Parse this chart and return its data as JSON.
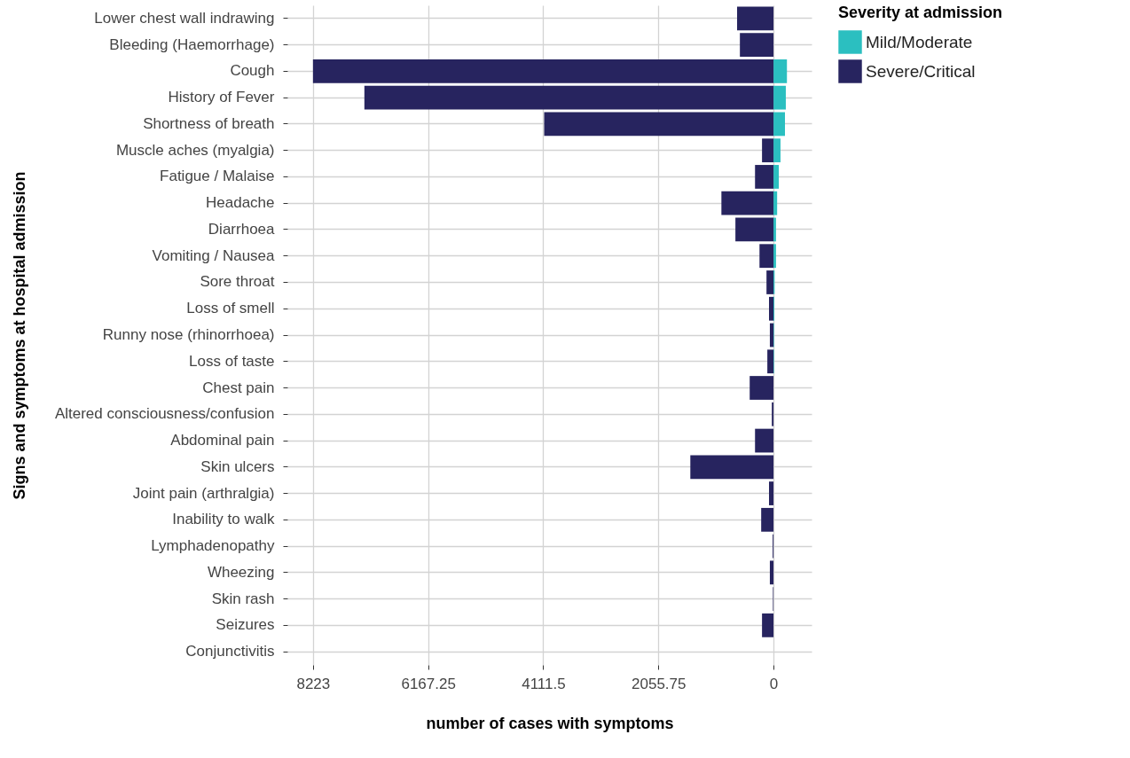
{
  "chart_data": {
    "type": "bar",
    "orientation": "horizontal",
    "xlabel": "number of cases with symptoms",
    "ylabel": "Signs and symptoms at hospital admission",
    "legend_title": "Severity at admission",
    "legend": "right",
    "grid": true,
    "categories": [
      "Lower chest wall indrawing",
      "Bleeding (Haemorrhage)",
      "Cough",
      "History of Fever",
      "Shortness of breath",
      "Muscle aches (myalgia)",
      "Fatigue / Malaise",
      "Headache",
      "Diarrhoea",
      "Vomiting / Nausea",
      "Sore throat",
      "Loss of smell",
      "Runny nose (rhinorrhoea)",
      "Loss of taste",
      "Chest pain",
      "Altered consciousness/confusion",
      "Abdominal pain",
      "Skin ulcers",
      "Joint pain (arthralgia)",
      "Inability to walk",
      "Lymphadenopathy",
      "Wheezing",
      "Skin rash",
      "Seizures",
      "Conjunctivitis"
    ],
    "xlim": [
      8680,
      -680
    ],
    "xticks": [
      8223,
      6167.25,
      4111.5,
      2055.75,
      0
    ],
    "series": [
      {
        "name": "Mild/Moderate",
        "color": "#2bbfc0",
        "values": [
          0,
          0,
          -240,
          -220,
          -205,
          -125,
          -95,
          -65,
          -45,
          -45,
          -20,
          -15,
          -10,
          -10,
          0,
          0,
          0,
          0,
          0,
          0,
          0,
          0,
          0,
          0,
          0
        ]
      },
      {
        "name": "Severe/Critical",
        "color": "#27245f",
        "values": [
          650,
          600,
          8223,
          7305,
          4095,
          205,
          330,
          930,
          680,
          250,
          125,
          80,
          65,
          110,
          425,
          30,
          330,
          1485,
          80,
          220,
          15,
          65,
          10,
          205,
          0
        ]
      }
    ]
  }
}
